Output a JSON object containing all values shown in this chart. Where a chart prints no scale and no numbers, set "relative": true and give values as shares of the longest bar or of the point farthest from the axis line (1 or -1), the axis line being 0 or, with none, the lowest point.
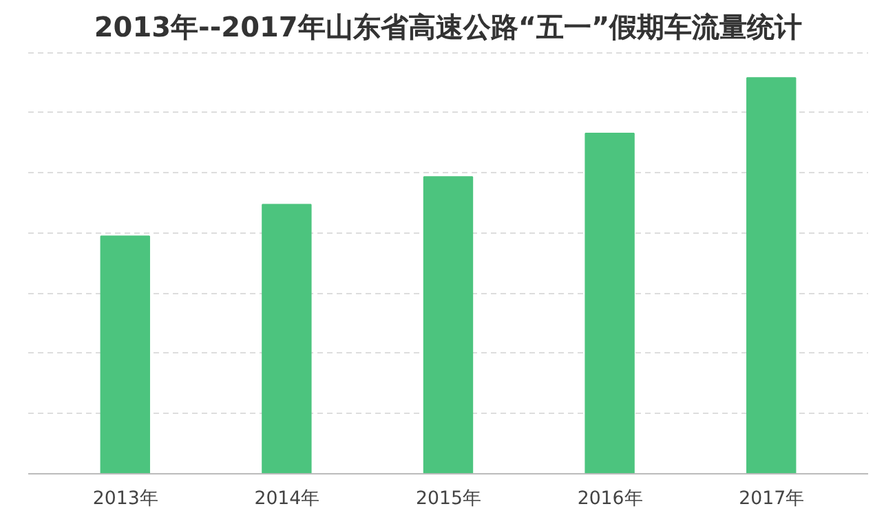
{
  "chart_data": {
    "type": "bar",
    "title": "2013年--2017年山东省高速公路“五一”假期车流量统计",
    "categories": [
      "2013年",
      "2014年",
      "2015年",
      "2016年",
      "2017年"
    ],
    "values": [
      0.6,
      0.68,
      0.75,
      0.86,
      1.0
    ],
    "color": "#4cc47e",
    "relative": true,
    "grid": "y"
  }
}
